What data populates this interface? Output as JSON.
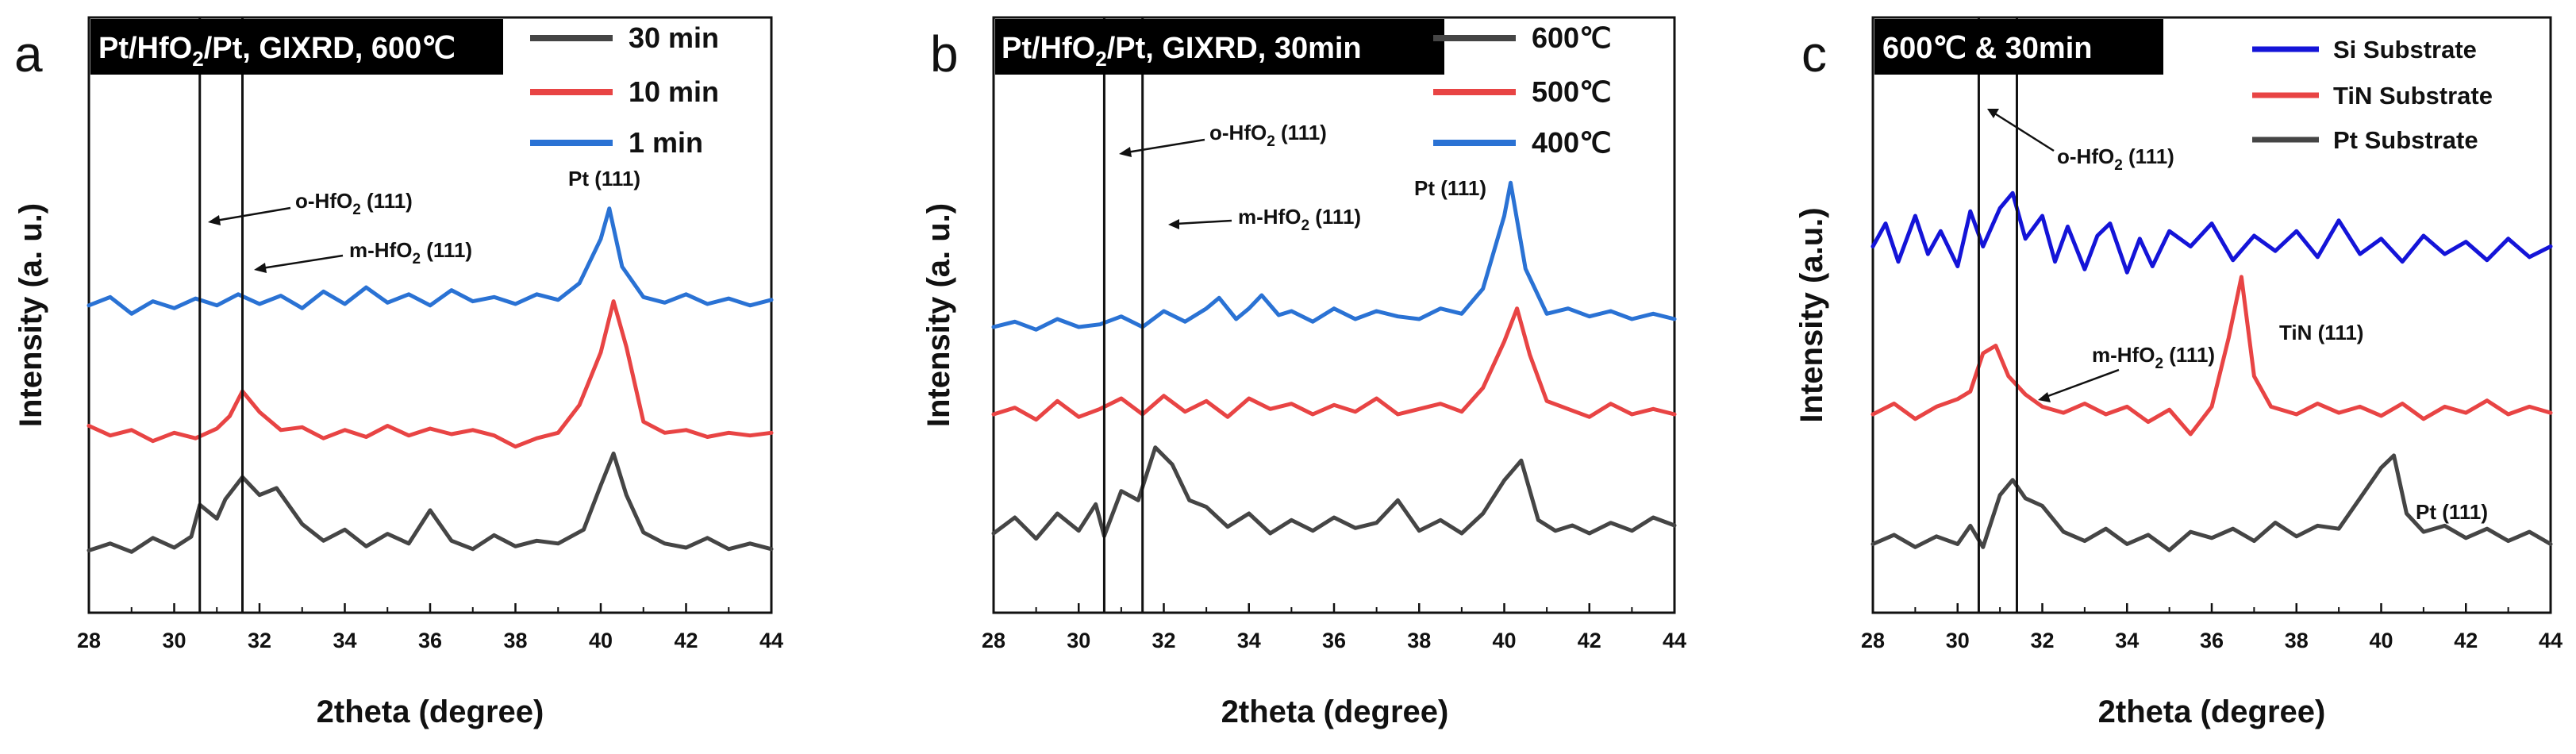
{
  "chart_data": [
    {
      "panel": "a",
      "type": "line",
      "title": "Pt/HfO2/Pt, GIXRD, 600℃",
      "title_parts": {
        "pre": "Pt/HfO",
        "sub": "2",
        "post": "/Pt, GIXRD, 600℃"
      },
      "xlabel": "2theta (degree)",
      "ylabel": "Intensity (a. u.)",
      "xlim": [
        28,
        44
      ],
      "xticks": [
        28,
        30,
        32,
        34,
        36,
        38,
        40,
        42,
        44
      ],
      "legend_position": "top-right",
      "vlines": [
        30.6,
        31.6
      ],
      "series": [
        {
          "name": "30 min",
          "color": "#454545",
          "x": [
            28,
            28.5,
            29,
            29.5,
            30,
            30.4,
            30.6,
            31,
            31.2,
            31.6,
            32,
            32.4,
            33,
            33.5,
            34,
            34.5,
            35,
            35.5,
            36,
            36.5,
            37,
            37.5,
            38,
            38.5,
            39,
            39.6,
            40,
            40.3,
            40.6,
            41,
            41.5,
            42,
            42.5,
            43,
            43.5,
            44
          ],
          "y": [
            0.15,
            0.2,
            0.14,
            0.24,
            0.17,
            0.25,
            0.48,
            0.38,
            0.52,
            0.68,
            0.55,
            0.6,
            0.34,
            0.22,
            0.3,
            0.18,
            0.27,
            0.2,
            0.44,
            0.22,
            0.16,
            0.26,
            0.18,
            0.22,
            0.2,
            0.3,
            0.62,
            0.85,
            0.55,
            0.28,
            0.2,
            0.17,
            0.24,
            0.16,
            0.2,
            0.16
          ]
        },
        {
          "name": "10 min",
          "color": "#e84444",
          "x": [
            28,
            28.5,
            29,
            29.5,
            30,
            30.5,
            31,
            31.3,
            31.6,
            32,
            32.5,
            33,
            33.5,
            34,
            34.5,
            35,
            35.5,
            36,
            36.5,
            37,
            37.5,
            38,
            38.5,
            39,
            39.5,
            40,
            40.3,
            40.6,
            41,
            41.5,
            42,
            42.5,
            43,
            43.5,
            44
          ],
          "y": [
            1.05,
            0.98,
            1.02,
            0.94,
            1.0,
            0.96,
            1.03,
            1.12,
            1.3,
            1.15,
            1.02,
            1.04,
            0.96,
            1.02,
            0.97,
            1.05,
            0.98,
            1.03,
            0.99,
            1.02,
            0.98,
            0.9,
            0.96,
            1.0,
            1.2,
            1.58,
            1.95,
            1.62,
            1.08,
            1.0,
            1.02,
            0.97,
            1.0,
            0.98,
            1.0
          ]
        },
        {
          "name": "1 min",
          "color": "#2a72d4",
          "x": [
            28,
            28.5,
            29,
            29.5,
            30,
            30.5,
            31,
            31.5,
            32,
            32.5,
            33,
            33.5,
            34,
            34.5,
            35,
            35.5,
            36,
            36.5,
            37,
            37.5,
            38,
            38.5,
            39,
            39.5,
            40,
            40.2,
            40.5,
            41,
            41.5,
            42,
            42.5,
            43,
            43.5,
            44
          ],
          "y": [
            1.92,
            1.98,
            1.86,
            1.95,
            1.9,
            1.97,
            1.92,
            2.0,
            1.93,
            1.99,
            1.9,
            2.02,
            1.93,
            2.05,
            1.94,
            2.0,
            1.92,
            2.03,
            1.95,
            1.98,
            1.93,
            2.0,
            1.96,
            2.08,
            2.4,
            2.62,
            2.2,
            1.98,
            1.94,
            2.0,
            1.93,
            1.97,
            1.92,
            1.96
          ]
        }
      ],
      "annotations": [
        {
          "label": "o-HfO2 (111)",
          "parts": {
            "pre": "o-HfO",
            "sub": "2",
            "post": " (111)"
          }
        },
        {
          "label": "m-HfO2 (111)",
          "parts": {
            "pre": "m-HfO",
            "sub": "2",
            "post": " (111)"
          }
        },
        {
          "label": "Pt (111)"
        }
      ]
    },
    {
      "panel": "b",
      "type": "line",
      "title": "Pt/HfO2/Pt, GIXRD, 30min",
      "title_parts": {
        "pre": "Pt/HfO",
        "sub": "2",
        "post": "/Pt, GIXRD, 30min"
      },
      "xlabel": "2theta (degree)",
      "ylabel": "Intensity (a. u.)",
      "xlim": [
        28,
        44
      ],
      "xticks": [
        28,
        30,
        32,
        34,
        36,
        38,
        40,
        42,
        44
      ],
      "legend_position": "top-right",
      "vlines": [
        30.6,
        31.5
      ],
      "series": [
        {
          "name": "600℃",
          "color": "#454545",
          "x": [
            28,
            28.5,
            29,
            29.5,
            30,
            30.4,
            30.6,
            31,
            31.4,
            31.8,
            32.2,
            32.6,
            33,
            33.5,
            34,
            34.5,
            35,
            35.5,
            36,
            36.5,
            37,
            37.5,
            38,
            38.5,
            39,
            39.5,
            40,
            40.4,
            40.8,
            41.2,
            41.6,
            42,
            42.5,
            43,
            43.5,
            44
          ],
          "y": [
            0.3,
            0.42,
            0.26,
            0.45,
            0.32,
            0.52,
            0.28,
            0.62,
            0.55,
            0.95,
            0.82,
            0.55,
            0.5,
            0.35,
            0.45,
            0.3,
            0.4,
            0.32,
            0.42,
            0.34,
            0.38,
            0.55,
            0.32,
            0.4,
            0.3,
            0.45,
            0.7,
            0.85,
            0.4,
            0.32,
            0.36,
            0.3,
            0.38,
            0.32,
            0.42,
            0.36
          ]
        },
        {
          "name": "500℃",
          "color": "#e84444",
          "x": [
            28,
            28.5,
            29,
            29.5,
            30,
            30.5,
            31,
            31.5,
            32,
            32.5,
            33,
            33.5,
            34,
            34.5,
            35,
            35.5,
            36,
            36.5,
            37,
            37.5,
            38,
            38.5,
            39,
            39.5,
            40,
            40.3,
            40.6,
            41,
            41.5,
            42,
            42.5,
            43,
            43.5,
            44
          ],
          "y": [
            1.2,
            1.25,
            1.16,
            1.3,
            1.18,
            1.24,
            1.32,
            1.2,
            1.34,
            1.22,
            1.3,
            1.18,
            1.32,
            1.24,
            1.28,
            1.2,
            1.27,
            1.22,
            1.32,
            1.2,
            1.24,
            1.28,
            1.22,
            1.4,
            1.75,
            2.0,
            1.65,
            1.3,
            1.24,
            1.18,
            1.28,
            1.2,
            1.24,
            1.2
          ]
        },
        {
          "name": "400℃",
          "color": "#2a72d4",
          "x": [
            28,
            28.5,
            29,
            29.5,
            30,
            30.5,
            31,
            31.5,
            32,
            32.5,
            33,
            33.3,
            33.7,
            34,
            34.3,
            34.7,
            35,
            35.5,
            36,
            36.5,
            37,
            37.5,
            38,
            38.5,
            39,
            39.5,
            40,
            40.15,
            40.5,
            41,
            41.5,
            42,
            42.5,
            43,
            43.5,
            44
          ],
          "y": [
            1.86,
            1.9,
            1.84,
            1.92,
            1.86,
            1.88,
            1.94,
            1.86,
            1.98,
            1.9,
            2.0,
            2.08,
            1.92,
            2.0,
            2.1,
            1.95,
            1.98,
            1.9,
            2.0,
            1.92,
            1.98,
            1.94,
            1.92,
            2.0,
            1.96,
            2.15,
            2.7,
            2.95,
            2.3,
            1.96,
            2.0,
            1.94,
            1.98,
            1.92,
            1.96,
            1.92
          ]
        }
      ],
      "annotations": [
        {
          "label": "o-HfO2 (111)",
          "parts": {
            "pre": "o-HfO",
            "sub": "2",
            "post": " (111)"
          }
        },
        {
          "label": "m-HfO2 (111)",
          "parts": {
            "pre": "m-HfO",
            "sub": "2",
            "post": " (111)"
          }
        },
        {
          "label": "Pt (111)"
        }
      ]
    },
    {
      "panel": "c",
      "type": "line",
      "title": "600℃ & 30min",
      "xlabel": "2theta (degree)",
      "ylabel": "Intensity (a.u.)",
      "xlim": [
        28,
        44
      ],
      "xticks": [
        28,
        30,
        32,
        34,
        36,
        38,
        40,
        42,
        44
      ],
      "legend_position": "top-right",
      "vlines": [
        30.5,
        31.4
      ],
      "series": [
        {
          "name": "Si Substrate",
          "color": "#1414d8",
          "x": [
            28,
            28.3,
            28.6,
            29,
            29.3,
            29.6,
            30,
            30.3,
            30.6,
            31,
            31.3,
            31.6,
            32,
            32.3,
            32.6,
            33,
            33.3,
            33.6,
            34,
            34.3,
            34.6,
            35,
            35.5,
            36,
            36.5,
            37,
            37.5,
            38,
            38.5,
            39,
            39.5,
            40,
            40.5,
            41,
            41.5,
            42,
            42.5,
            43,
            43.5,
            44
          ],
          "y": [
            2.05,
            2.2,
            1.95,
            2.25,
            2.0,
            2.15,
            1.92,
            2.28,
            2.05,
            2.3,
            2.4,
            2.1,
            2.25,
            1.95,
            2.18,
            1.9,
            2.12,
            2.2,
            1.88,
            2.1,
            1.92,
            2.15,
            2.05,
            2.2,
            1.96,
            2.12,
            2.02,
            2.15,
            1.98,
            2.22,
            2.0,
            2.1,
            1.95,
            2.12,
            2.0,
            2.08,
            1.96,
            2.1,
            1.98,
            2.05
          ]
        },
        {
          "name": "TiN Substrate",
          "color": "#e84444",
          "x": [
            28,
            28.5,
            29,
            29.5,
            30,
            30.3,
            30.6,
            30.9,
            31.2,
            31.6,
            32,
            32.5,
            33,
            33.5,
            34,
            34.5,
            35,
            35.5,
            36,
            36.4,
            36.7,
            37,
            37.4,
            38,
            38.5,
            39,
            39.5,
            40,
            40.5,
            41,
            41.5,
            42,
            42.5,
            43,
            43.5,
            44
          ],
          "y": [
            0.95,
            1.02,
            0.92,
            1.0,
            1.05,
            1.1,
            1.35,
            1.4,
            1.2,
            1.08,
            1.0,
            0.96,
            1.02,
            0.95,
            1.0,
            0.9,
            0.98,
            0.82,
            1.0,
            1.45,
            1.85,
            1.2,
            1.0,
            0.95,
            1.02,
            0.96,
            1.0,
            0.94,
            1.02,
            0.92,
            1.0,
            0.96,
            1.04,
            0.95,
            1.0,
            0.96
          ]
        },
        {
          "name": "Pt Substrate",
          "color": "#454545",
          "x": [
            28,
            28.5,
            29,
            29.5,
            30,
            30.3,
            30.6,
            31,
            31.3,
            31.6,
            32,
            32.5,
            33,
            33.5,
            34,
            34.5,
            35,
            35.5,
            36,
            36.5,
            37,
            37.5,
            38,
            38.5,
            39,
            39.5,
            40,
            40.3,
            40.6,
            41,
            41.5,
            42,
            42.5,
            43,
            43.5,
            44
          ],
          "y": [
            0.1,
            0.16,
            0.08,
            0.15,
            0.1,
            0.22,
            0.08,
            0.42,
            0.52,
            0.4,
            0.35,
            0.18,
            0.12,
            0.2,
            0.1,
            0.16,
            0.06,
            0.18,
            0.14,
            0.2,
            0.12,
            0.24,
            0.15,
            0.22,
            0.2,
            0.4,
            0.6,
            0.68,
            0.3,
            0.18,
            0.22,
            0.14,
            0.2,
            0.12,
            0.18,
            0.1
          ]
        }
      ],
      "annotations": [
        {
          "label": "o-HfO2 (111)",
          "parts": {
            "pre": "o-HfO",
            "sub": "2",
            "post": " (111)"
          }
        },
        {
          "label": "m-HfO2 (111)",
          "parts": {
            "pre": "m-HfO",
            "sub": "2",
            "post": " (111)"
          }
        },
        {
          "label": "TiN (111)"
        },
        {
          "label": "Pt (111)"
        }
      ]
    }
  ]
}
